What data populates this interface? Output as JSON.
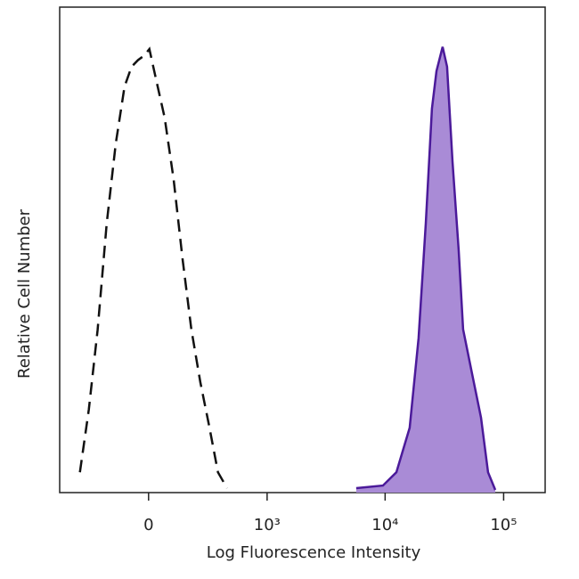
{
  "chart_data": {
    "type": "histogram-overlay",
    "xlabel": "Log Fluorescence Intensity",
    "ylabel": "Relative Cell Number",
    "xscale": "biexponential",
    "xlim": [
      -550,
      224000
    ],
    "ylim": [
      0,
      110
    ],
    "xticks": [
      0,
      {
        "value": 1000,
        "label": "10³"
      },
      {
        "value": 10000,
        "label": "10⁴"
      },
      {
        "value": 100000,
        "label": "10⁵"
      }
    ],
    "series": [
      {
        "color": "#111111",
        "dash": true,
        "fill": "none",
        "x": [
          -357,
          -291,
          -234,
          -183,
          -138,
          -98,
          -68,
          -42,
          -18,
          3,
          28,
          64,
          102,
          143,
          188,
          239,
          297,
          363,
          442
        ],
        "values": [
          4.6,
          18.8,
          36.9,
          61,
          79,
          92,
          96.5,
          98,
          99,
          100.5,
          94,
          85,
          71,
          53,
          37,
          25,
          15,
          4.6,
          1
        ]
      },
      {
        "color": "#4b1a9a",
        "dash": false,
        "fill": "#a98bd6",
        "x": [
          5705,
          9585,
          12440,
          16120,
          19170,
          22020,
          24850,
          27130,
          30580,
          33350,
          37010,
          41770,
          45530,
          54140,
          64440,
          73930,
          85040
        ],
        "values": [
          1,
          1.6,
          4.6,
          14.7,
          35,
          61,
          87,
          95.5,
          101,
          96.5,
          75,
          55,
          37,
          27,
          17,
          4.6,
          0.6
        ]
      }
    ]
  }
}
